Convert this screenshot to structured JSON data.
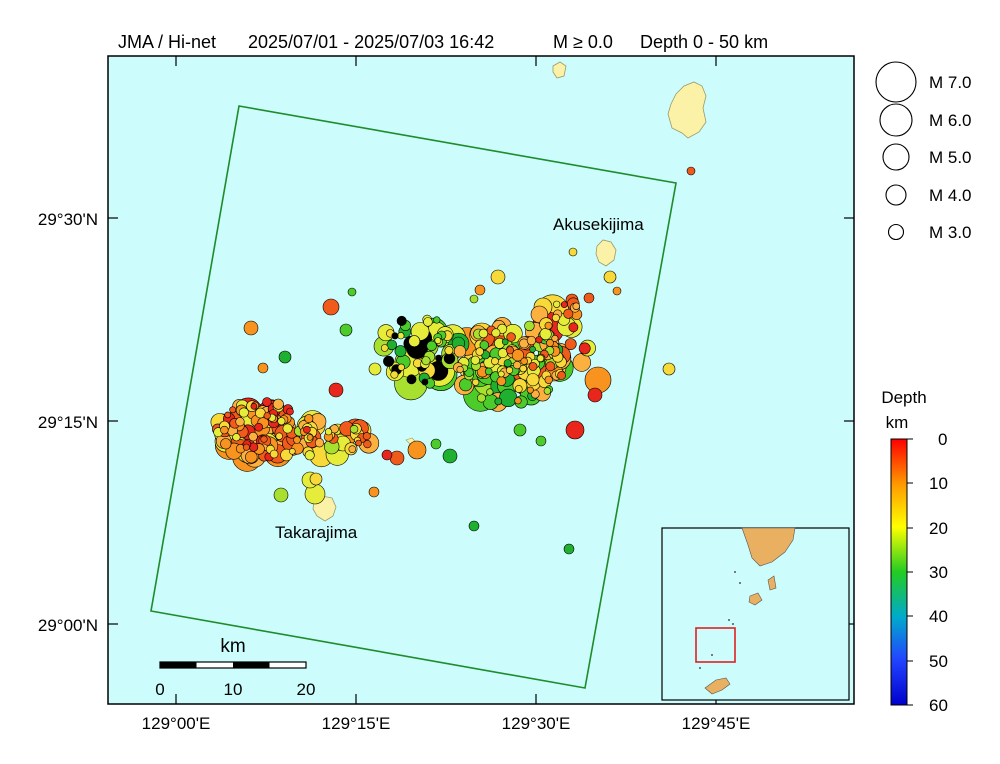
{
  "header": {
    "source": "JMA / Hi-net",
    "period": "2025/07/01 - 2025/07/03 16:42",
    "magnitude": "M ≥ 0.0",
    "depth": "Depth 0 - 50 km"
  },
  "axes": {
    "lat_ticks": [
      "29°30'N",
      "29°15'N",
      "29°00'N"
    ],
    "lon_ticks": [
      "129°00'E",
      "129°15'E",
      "129°30'E",
      "129°45'E"
    ]
  },
  "place_labels": {
    "akusekijima": "Akusekijima",
    "takarajima": "Takarajima"
  },
  "scale_bar": {
    "unit": "km",
    "ticks": [
      "0",
      "10",
      "20"
    ]
  },
  "magnitude_legend": [
    {
      "label": "M 7.0",
      "magnitude": 7.0
    },
    {
      "label": "M 6.0",
      "magnitude": 6.0
    },
    {
      "label": "M 5.0",
      "magnitude": 5.0
    },
    {
      "label": "M 4.0",
      "magnitude": 4.0
    },
    {
      "label": "M 3.0",
      "magnitude": 3.0
    }
  ],
  "depth_scale": {
    "title_line1": "Depth",
    "title_line2": "km",
    "ticks": [
      "0",
      "10",
      "20",
      "30",
      "40",
      "50",
      "60"
    ],
    "range_km": [
      0,
      60
    ]
  },
  "colors": {
    "sea": "#ccfcfc",
    "land": "#fbf2a8",
    "land_stroke": "#9a9a6a",
    "study_area": "#1e8c2a",
    "inset_box": "#e02020",
    "inset_land": "#e8b060"
  }
}
